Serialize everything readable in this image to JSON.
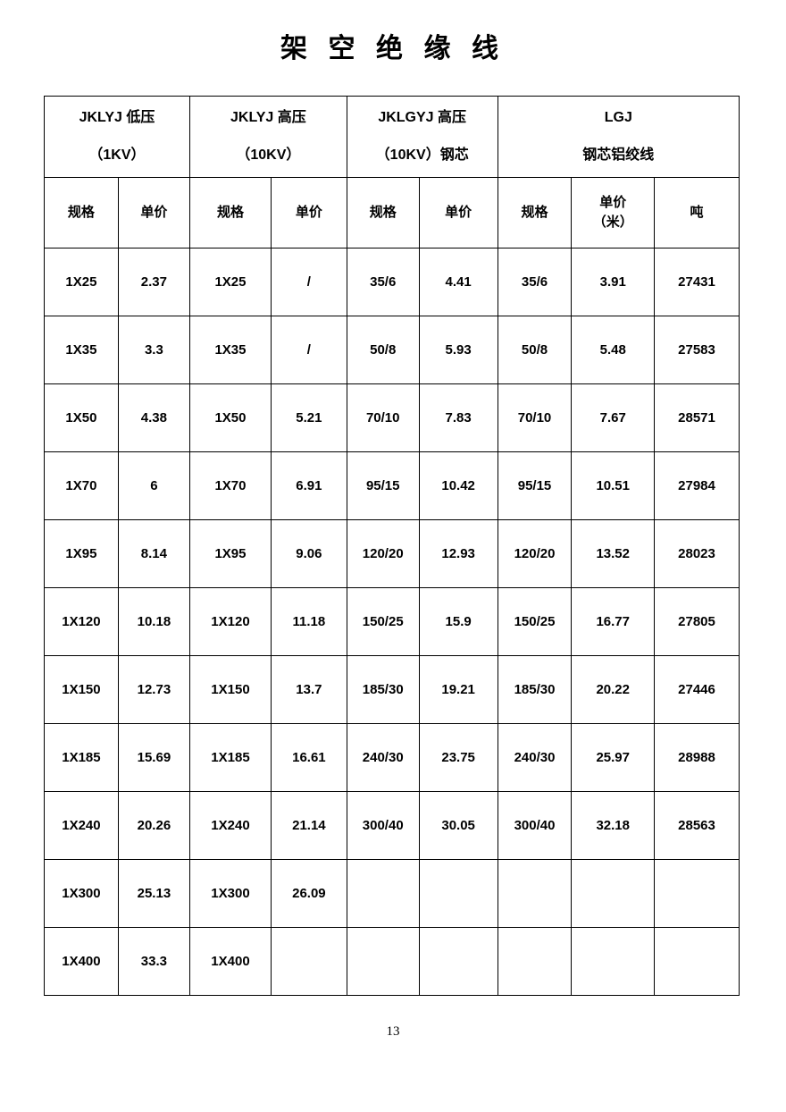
{
  "page": {
    "title": "架 空 绝 缘 线",
    "page_number": "13"
  },
  "table": {
    "groups": [
      {
        "line1": "JKLYJ 低压",
        "line2": "（1KV）"
      },
      {
        "line1": "JKLYJ 高压",
        "line2": "（10KV）"
      },
      {
        "line1": "JKLGYJ 高压",
        "line2": "（10KV）钢芯"
      },
      {
        "line1": "LGJ",
        "line2": "钢芯铝绞线"
      }
    ],
    "columns": [
      "规格",
      "单价",
      "规格",
      "单价",
      "规格",
      "单价",
      "规格",
      "单价\n（米）",
      "吨"
    ],
    "rows": [
      [
        "1X25",
        "2.37",
        "1X25",
        "/",
        "35/6",
        "4.41",
        "35/6",
        "3.91",
        "27431"
      ],
      [
        "1X35",
        "3.3",
        "1X35",
        "/",
        "50/8",
        "5.93",
        "50/8",
        "5.48",
        "27583"
      ],
      [
        "1X50",
        "4.38",
        "1X50",
        "5.21",
        "70/10",
        "7.83",
        "70/10",
        "7.67",
        "28571"
      ],
      [
        "1X70",
        "6",
        "1X70",
        "6.91",
        "95/15",
        "10.42",
        "95/15",
        "10.51",
        "27984"
      ],
      [
        "1X95",
        "8.14",
        "1X95",
        "9.06",
        "120/20",
        "12.93",
        "120/20",
        "13.52",
        "28023"
      ],
      [
        "1X120",
        "10.18",
        "1X120",
        "11.18",
        "150/25",
        "15.9",
        "150/25",
        "16.77",
        "27805"
      ],
      [
        "1X150",
        "12.73",
        "1X150",
        "13.7",
        "185/30",
        "19.21",
        "185/30",
        "20.22",
        "27446"
      ],
      [
        "1X185",
        "15.69",
        "1X185",
        "16.61",
        "240/30",
        "23.75",
        "240/30",
        "25.97",
        "28988"
      ],
      [
        "1X240",
        "20.26",
        "1X240",
        "21.14",
        "300/40",
        "30.05",
        "300/40",
        "32.18",
        "28563"
      ],
      [
        "1X300",
        "25.13",
        "1X300",
        "26.09",
        "",
        "",
        "",
        "",
        ""
      ],
      [
        "1X400",
        "33.3",
        "1X400",
        "",
        "",
        "",
        "",
        "",
        ""
      ]
    ]
  }
}
